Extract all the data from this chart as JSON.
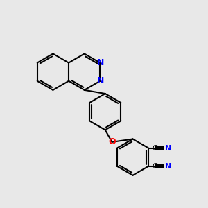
{
  "bg_color": "#e8e8e8",
  "bond_color": "#000000",
  "N_color": "#0000ff",
  "O_color": "#ff0000",
  "line_width": 1.5,
  "font_size": 9,
  "r6": 0.48,
  "xlim": [
    -2.4,
    3.0
  ],
  "ylim": [
    -2.2,
    2.4
  ]
}
